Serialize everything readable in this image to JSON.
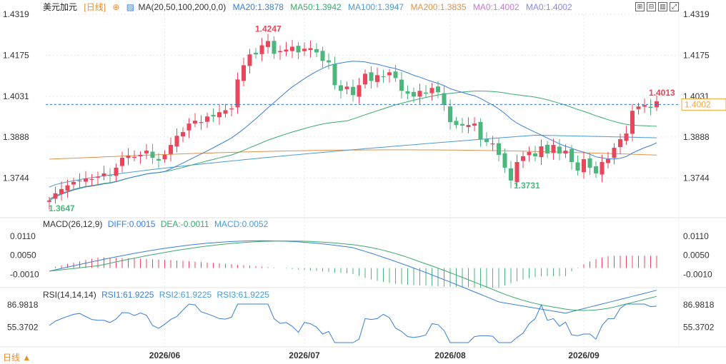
{
  "header": {
    "symbol": "美元加元",
    "period": "[日线]",
    "ma_label": "MA(20,50,100,200,0,0)",
    "ma20": "MA20:1.3878",
    "ma50": "MA50:1.3942",
    "ma100": "MA100:1.3947",
    "ma200": "MA200:1.3835",
    "ma0a": "MA0:1.4002",
    "ma0b": "MA0:1.4002"
  },
  "macd_header": {
    "title": "MACD(26,12,9)",
    "diff": "DIFF:0.0015",
    "dea": "DEA:-0.0011",
    "macd": "MACD:0.0052"
  },
  "rsi_header": {
    "title": "RSI(14,14,14)",
    "rsi1": "RSI1:61.9225",
    "rsi2": "RSI2:61.9225",
    "rsi3": "RSI3:61.9225"
  },
  "footer": {
    "period_button": "日线 ▲"
  },
  "colors": {
    "up": "#e8465a",
    "down": "#4cb67d",
    "ma20": "#3a7fd6",
    "ma50": "#3aaa6e",
    "ma100": "#4c9bd6",
    "ma200": "#e0914a",
    "current": "#f3a73b",
    "grid": "#e6e6e6"
  },
  "chart_data": [
    {
      "type": "candlestick",
      "ylim": [
        1.3647,
        1.4319
      ],
      "y_ticks": [
        "1.4319",
        "1.4175",
        "1.4031",
        "1.3888",
        "1.3744"
      ],
      "x_ticks": [
        "2026/06",
        "2026/07",
        "2026/08",
        "2026/09"
      ],
      "high_label": "1.4247",
      "low_labels": [
        "1.3647",
        "1.3731"
      ],
      "last_label": "1.4013",
      "current_price": "1.4002",
      "close": [
        1.3665,
        1.369,
        1.3705,
        1.3718,
        1.373,
        1.3735,
        1.3742,
        1.374,
        1.3748,
        1.376,
        1.3752,
        1.378,
        1.3815,
        1.3822,
        1.3818,
        1.3825,
        1.384,
        1.3815,
        1.3805,
        1.3825,
        1.386,
        1.3892,
        1.3905,
        1.3935,
        1.3945,
        1.394,
        1.396,
        1.396,
        1.3975,
        1.3982,
        1.3988,
        1.409,
        1.414,
        1.4178,
        1.4178,
        1.421,
        1.4225,
        1.418,
        1.419,
        1.4195,
        1.4205,
        1.4185,
        1.4198,
        1.42,
        1.4185,
        1.4155,
        1.415,
        1.407,
        1.405,
        1.4065,
        1.4035,
        1.407,
        1.411,
        1.4085,
        1.4105,
        1.41,
        1.4115,
        1.4095,
        1.405,
        1.404,
        1.403,
        1.405,
        1.404,
        1.406,
        1.4045,
        1.4,
        1.394,
        1.393,
        1.3928,
        1.393,
        1.3935,
        1.388,
        1.387,
        1.3865,
        1.3825,
        1.378,
        1.3735,
        1.38,
        1.382,
        1.3835,
        1.382,
        1.3855,
        1.383,
        1.386,
        1.383,
        1.384,
        1.38,
        1.377,
        1.381,
        1.378,
        1.376,
        1.38,
        1.381,
        1.385,
        1.388,
        1.39,
        1.398,
        1.3995,
        1.4,
        1.399,
        1.4013
      ],
      "ma20_end": 1.3878,
      "ma50_end": 1.3942,
      "ma100_end": 1.3947,
      "ma200_end": 1.3835
    },
    {
      "type": "macd",
      "y_ticks": [
        "0.0110",
        "0.0050",
        "-0.0010"
      ],
      "diff": 0.0015,
      "dea": -0.0011,
      "macd": 0.0052
    },
    {
      "type": "rsi",
      "y_ticks": [
        "86.9818",
        "55.3702"
      ],
      "rsi1": 61.9225,
      "rsi2": 61.9225,
      "rsi3": 61.9225
    }
  ]
}
